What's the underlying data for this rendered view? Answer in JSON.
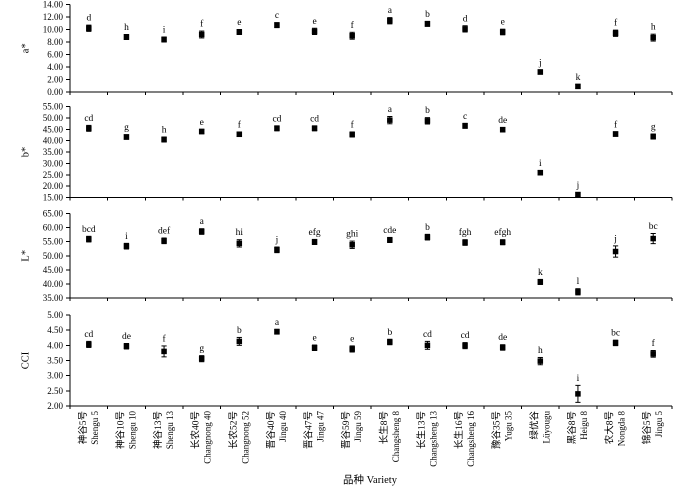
{
  "figure": {
    "xlabel": "品种 Variety",
    "background_color": "#ffffff",
    "ink_color": "#000000",
    "marker_shape": "filled-square",
    "error_bars": true
  },
  "categories": [
    {
      "zh": "神谷5号",
      "en": "Shengu 5"
    },
    {
      "zh": "神谷10号",
      "en": "Shengu 10"
    },
    {
      "zh": "神谷13号",
      "en": "Shengu 13"
    },
    {
      "zh": "长农40号",
      "en": "Changnong 40"
    },
    {
      "zh": "长农52号",
      "en": "Changnong 52"
    },
    {
      "zh": "晋谷40号",
      "en": "Jingu 40"
    },
    {
      "zh": "晋谷47号",
      "en": "Jingu 47"
    },
    {
      "zh": "晋谷59号",
      "en": "Jingu 59"
    },
    {
      "zh": "长生8号",
      "en": "Changsheng 8"
    },
    {
      "zh": "长生13号",
      "en": "Changsheng 13"
    },
    {
      "zh": "长生16号",
      "en": "Changsheng 16"
    },
    {
      "zh": "豫谷35号",
      "en": "Yugu 35"
    },
    {
      "zh": "绿优谷",
      "en": "Lüyougu"
    },
    {
      "zh": "黑谷8号",
      "en": "Heigu 8"
    },
    {
      "zh": "农大8号",
      "en": "Nongda 8"
    },
    {
      "zh": "锦谷5号",
      "en": "Jingu 5"
    }
  ],
  "chart_data": [
    {
      "type": "scatter",
      "panel_id": "a-star",
      "ylabel": "a*",
      "ylim": [
        0,
        14
      ],
      "yticks": [
        0,
        2,
        4,
        6,
        8,
        10,
        12,
        14
      ],
      "ytick_labels": [
        "0.00",
        "2.00",
        "4.00",
        "6.00",
        "8.00",
        "10.00",
        "12.00",
        "14.00"
      ],
      "values": [
        10.2,
        8.8,
        8.4,
        9.2,
        9.6,
        10.7,
        9.7,
        9.0,
        11.4,
        10.9,
        10.1,
        9.6,
        3.2,
        0.9,
        9.4,
        8.7
      ],
      "errors": [
        0.5,
        0.4,
        0.4,
        0.55,
        0.4,
        0.4,
        0.5,
        0.55,
        0.5,
        0.4,
        0.5,
        0.45,
        0.35,
        0.3,
        0.5,
        0.55
      ],
      "sig_letters": [
        "d",
        "h",
        "i",
        "f",
        "e",
        "c",
        "e",
        "f",
        "a",
        "b",
        "d",
        "e",
        "j",
        "k",
        "f",
        "h"
      ]
    },
    {
      "type": "scatter",
      "panel_id": "b-star",
      "ylabel": "b*",
      "ylim": [
        15,
        55
      ],
      "yticks": [
        15,
        20,
        25,
        30,
        35,
        40,
        45,
        50,
        55
      ],
      "ytick_labels": [
        "15.00",
        "20.00",
        "25.00",
        "30.00",
        "35.00",
        "40.00",
        "45.00",
        "50.00",
        "55.00"
      ],
      "values": [
        45.4,
        41.6,
        40.5,
        44.0,
        42.8,
        45.4,
        45.4,
        42.7,
        49.0,
        48.7,
        46.5,
        44.8,
        25.9,
        16.3,
        42.9,
        41.8
      ],
      "errors": [
        1.3,
        1.0,
        1.1,
        1.0,
        1.0,
        1.1,
        1.1,
        1.1,
        1.6,
        1.4,
        1.1,
        1.0,
        1.0,
        0.8,
        1.0,
        1.1
      ],
      "sig_letters": [
        "cd",
        "g",
        "h",
        "e",
        "f",
        "cd",
        "cd",
        "f",
        "a",
        "b",
        "c",
        "de",
        "i",
        "j",
        "f",
        "g"
      ]
    },
    {
      "type": "scatter",
      "panel_id": "L-star",
      "ylabel": "L*",
      "ylim": [
        35,
        65
      ],
      "yticks": [
        35,
        40,
        45,
        50,
        55,
        60,
        65
      ],
      "ytick_labels": [
        "35.00",
        "40.00",
        "45.00",
        "50.00",
        "55.00",
        "60.00",
        "65.00"
      ],
      "values": [
        55.9,
        53.4,
        55.3,
        58.6,
        54.4,
        52.1,
        54.9,
        53.9,
        55.6,
        56.6,
        54.7,
        54.8,
        40.7,
        37.2,
        51.5,
        56.1
      ],
      "errors": [
        1.0,
        1.0,
        1.0,
        1.0,
        1.3,
        1.0,
        0.9,
        1.3,
        0.9,
        1.0,
        1.0,
        0.9,
        0.9,
        1.1,
        2.0,
        1.8
      ],
      "sig_letters": [
        "bcd",
        "i",
        "def",
        "a",
        "hi",
        "j",
        "efg",
        "ghi",
        "cde",
        "b",
        "fgh",
        "efgh",
        "k",
        "l",
        "j",
        "bc"
      ]
    },
    {
      "type": "scatter",
      "panel_id": "CCI",
      "ylabel": "CCI",
      "ylim": [
        2,
        5
      ],
      "yticks": [
        2,
        2.5,
        3,
        3.5,
        4,
        4.5,
        5
      ],
      "ytick_labels": [
        "2.00",
        "2.50",
        "3.00",
        "3.50",
        "4.00",
        "4.50",
        "5.00"
      ],
      "values": [
        4.03,
        3.97,
        3.8,
        3.56,
        4.13,
        4.45,
        3.92,
        3.88,
        4.11,
        4.0,
        3.99,
        3.93,
        3.48,
        2.4,
        4.08,
        3.72
      ],
      "errors": [
        0.1,
        0.09,
        0.18,
        0.1,
        0.13,
        0.08,
        0.09,
        0.1,
        0.09,
        0.13,
        0.1,
        0.09,
        0.12,
        0.28,
        0.09,
        0.11
      ],
      "sig_letters": [
        "cd",
        "de",
        "f",
        "g",
        "b",
        "a",
        "e",
        "e",
        "b",
        "cd",
        "cd",
        "de",
        "h",
        "i",
        "bc",
        "f"
      ]
    }
  ]
}
